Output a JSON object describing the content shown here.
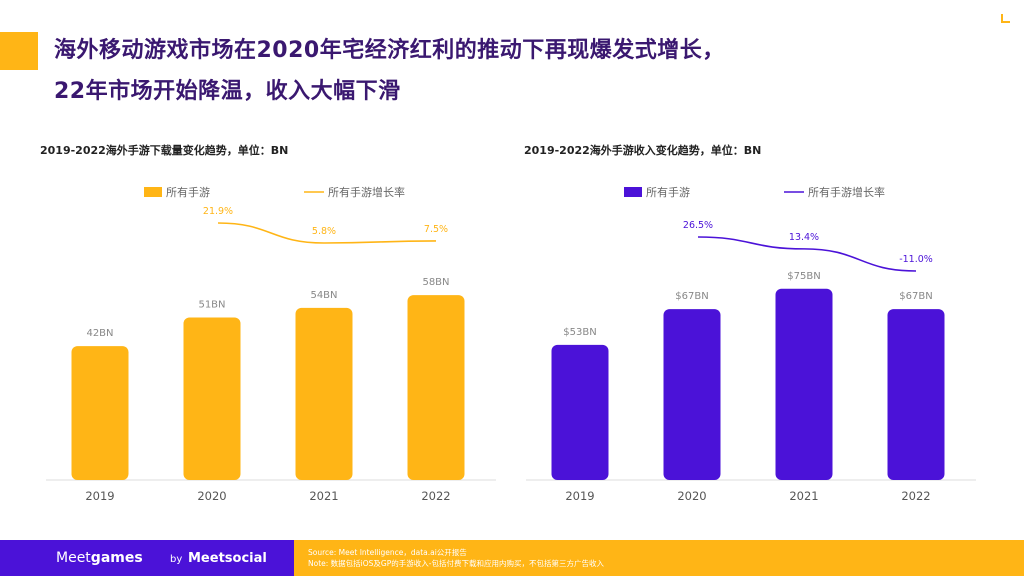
{
  "page": {
    "title_line1": "海外移动游戏市场在2020年宅经济红利的推动下再现爆发式增长，",
    "title_line2": "22年市场开始降温，收入大幅下滑",
    "colors": {
      "accent_yellow": "#FFB516",
      "accent_purple": "#4B12D8",
      "title": "#3A1870"
    }
  },
  "chart_data": [
    {
      "type": "bar",
      "title": "2019-2022海外手游下载量变化趋势，单位：BN",
      "categories": [
        "2019",
        "2020",
        "2021",
        "2022"
      ],
      "series": [
        {
          "name": "所有手游",
          "kind": "bar",
          "values": [
            42,
            51,
            54,
            58
          ],
          "labels": [
            "42BN",
            "51BN",
            "54BN",
            "58BN"
          ],
          "color": "#FFB516"
        },
        {
          "name": "所有手游增长率",
          "kind": "line",
          "values": [
            null,
            21.9,
            5.8,
            7.5
          ],
          "labels": [
            "",
            "21.9%",
            "5.8%",
            "7.5%"
          ],
          "color": "#FFB516"
        }
      ],
      "ylim": [
        0,
        80
      ],
      "legend_position": "top"
    },
    {
      "type": "bar",
      "title": "2019-2022海外手游收入变化趋势，单位：BN",
      "categories": [
        "2019",
        "2020",
        "2021",
        "2022"
      ],
      "series": [
        {
          "name": "所有手游",
          "kind": "bar",
          "values": [
            53,
            67,
            75,
            67
          ],
          "labels": [
            "$53BN",
            "$67BN",
            "$75BN",
            "$67BN"
          ],
          "color": "#4B12D8"
        },
        {
          "name": "所有手游增长率",
          "kind": "line",
          "values": [
            null,
            26.5,
            13.4,
            -11.0
          ],
          "labels": [
            "",
            "26.5%",
            "13.4%",
            "-11.0%"
          ],
          "color": "#4B12D8"
        }
      ],
      "ylim": [
        0,
        100
      ],
      "legend_position": "top"
    }
  ],
  "footer": {
    "brand_prefix": "Meet",
    "brand_suffix": "games",
    "by": "by",
    "partner": "Meetsocial",
    "source": "Source: Meet Intelligence，data.ai公开报告",
    "note": "Note: 数据包括iOS及GP的手游收入-包括付费下载和应用内购买，不包括第三方广告收入"
  }
}
